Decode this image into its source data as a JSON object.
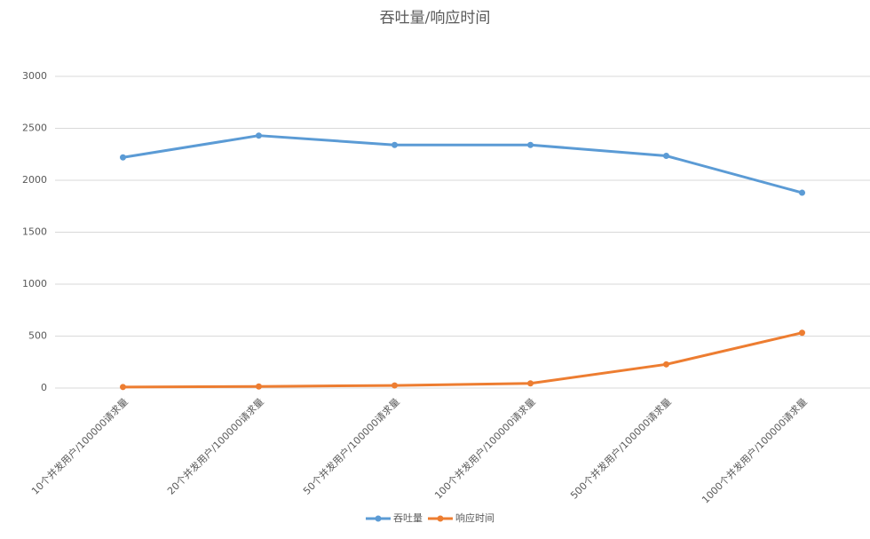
{
  "chart_data": {
    "type": "line",
    "title": "吞吐量/响应时间",
    "categories": [
      "10个并发用户/100000请求量",
      "20个并发用户/100000请求量",
      "50个并发用户/100000请求量",
      "100个并发用户/100000请求量",
      "500个并发用户/100000请求量",
      "1000个并发用户/100000请求量"
    ],
    "series": [
      {
        "name": "吞吐量",
        "color": "#5b9bd5",
        "values": [
          2220,
          2430,
          2340,
          2340,
          2235,
          1880
        ]
      },
      {
        "name": "响应时间",
        "color": "#ed7d31",
        "values": [
          10,
          15,
          25,
          45,
          228,
          532
        ]
      }
    ],
    "ylim": [
      0,
      3000
    ],
    "yticks": [
      0,
      500,
      1000,
      1500,
      2000,
      2500,
      3000
    ],
    "grid": true,
    "legend": "bottom"
  }
}
